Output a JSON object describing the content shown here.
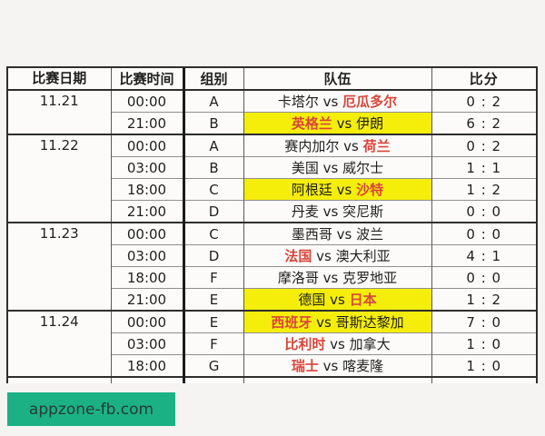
{
  "page": {
    "background": "#f5f4f2"
  },
  "watermark": {
    "label": "appzone-fb.com",
    "background": "#1cb185",
    "text_color": "#223b34"
  },
  "table": {
    "columns": [
      "比赛日期",
      "比赛时间",
      "组别",
      "队伍",
      "比分"
    ],
    "vs_label": "vs",
    "colors": {
      "highlight_bg": "#f5ee0b",
      "winner_text": "#d9453a",
      "text": "#1f1f1f",
      "border_strong": "#2e2e2e",
      "border_light": "#8f8f8f"
    },
    "groups": [
      {
        "date": "11.21",
        "matches": [
          {
            "time": "00:00",
            "group": "A",
            "home": "卡塔尔",
            "away": "厄瓜多尔",
            "winner": "away",
            "highlight": false,
            "score": "0 : 2"
          },
          {
            "time": "21:00",
            "group": "B",
            "home": "英格兰",
            "away": "伊朗",
            "winner": "home",
            "highlight": true,
            "score": "6 : 2"
          }
        ]
      },
      {
        "date": "11.22",
        "matches": [
          {
            "time": "00:00",
            "group": "A",
            "home": "赛内加尔",
            "away": "荷兰",
            "winner": "away",
            "highlight": false,
            "score": "0 : 2"
          },
          {
            "time": "03:00",
            "group": "B",
            "home": "美国",
            "away": "威尔士",
            "winner": "none",
            "highlight": false,
            "score": "1 : 1"
          },
          {
            "time": "18:00",
            "group": "C",
            "home": "阿根廷",
            "away": "沙特",
            "winner": "away",
            "highlight": true,
            "score": "1 : 2"
          },
          {
            "time": "21:00",
            "group": "D",
            "home": "丹麦",
            "away": "突尼斯",
            "winner": "none",
            "highlight": false,
            "score": "0 : 0"
          }
        ]
      },
      {
        "date": "11.23",
        "matches": [
          {
            "time": "00:00",
            "group": "C",
            "home": "墨西哥",
            "away": "波兰",
            "winner": "none",
            "highlight": false,
            "score": "0 : 0"
          },
          {
            "time": "03:00",
            "group": "D",
            "home": "法国",
            "away": "澳大利亚",
            "winner": "home",
            "highlight": false,
            "score": "4 : 1"
          },
          {
            "time": "18:00",
            "group": "F",
            "home": "摩洛哥",
            "away": "克罗地亚",
            "winner": "none",
            "highlight": false,
            "score": "0 : 0"
          },
          {
            "time": "21:00",
            "group": "E",
            "home": "德国",
            "away": "日本",
            "winner": "away",
            "highlight": true,
            "score": "1 : 2"
          }
        ]
      },
      {
        "date": "11.24",
        "matches": [
          {
            "time": "00:00",
            "group": "E",
            "home": "西班牙",
            "away": "哥斯达黎加",
            "winner": "home",
            "highlight": true,
            "score": "7 : 0"
          },
          {
            "time": "03:00",
            "group": "F",
            "home": "比利时",
            "away": "加拿大",
            "winner": "home",
            "highlight": false,
            "score": "1 : 0"
          },
          {
            "time": "18:00",
            "group": "G",
            "home": "瑞士",
            "away": "喀麦隆",
            "winner": "home",
            "highlight": false,
            "score": "1 : 0"
          }
        ]
      }
    ]
  },
  "chart_data": {
    "type": "table",
    "title": "",
    "columns": [
      "比赛日期",
      "比赛时间",
      "组别",
      "队伍",
      "比分"
    ],
    "rows": [
      [
        "11.21",
        "00:00",
        "A",
        "卡塔尔 vs 厄瓜多尔",
        "0 : 2"
      ],
      [
        "11.21",
        "21:00",
        "B",
        "英格兰 vs 伊朗",
        "6 : 2"
      ],
      [
        "11.22",
        "00:00",
        "A",
        "赛内加尔 vs 荷兰",
        "0 : 2"
      ],
      [
        "11.22",
        "03:00",
        "B",
        "美国 vs 威尔士",
        "1 : 1"
      ],
      [
        "11.22",
        "18:00",
        "C",
        "阿根廷 vs 沙特",
        "1 : 2"
      ],
      [
        "11.22",
        "21:00",
        "D",
        "丹麦 vs 突尼斯",
        "0 : 0"
      ],
      [
        "11.23",
        "00:00",
        "C",
        "墨西哥 vs 波兰",
        "0 : 0"
      ],
      [
        "11.23",
        "03:00",
        "D",
        "法国 vs 澳大利亚",
        "4 : 1"
      ],
      [
        "11.23",
        "18:00",
        "F",
        "摩洛哥 vs 克罗地亚",
        "0 : 0"
      ],
      [
        "11.23",
        "21:00",
        "E",
        "德国 vs 日本",
        "1 : 2"
      ],
      [
        "11.24",
        "00:00",
        "E",
        "西班牙 vs 哥斯达黎加",
        "7 : 0"
      ],
      [
        "11.24",
        "03:00",
        "F",
        "比利时 vs 加拿大",
        "1 : 0"
      ],
      [
        "11.24",
        "18:00",
        "G",
        "瑞士 vs 喀麦隆",
        "1 : 0"
      ]
    ],
    "highlighted_rows": [
      1,
      4,
      9,
      10
    ],
    "winner_in_red": [
      "厄瓜多尔",
      "英格兰",
      "荷兰",
      "沙特",
      "法国",
      "日本",
      "西班牙",
      "比利时",
      "瑞士"
    ]
  }
}
